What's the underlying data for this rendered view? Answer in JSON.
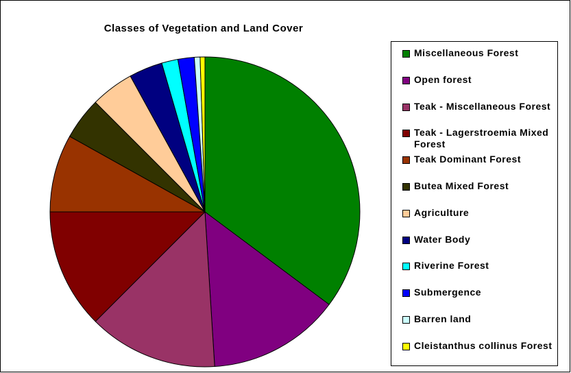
{
  "chart_data": {
    "type": "pie",
    "title": "Classes of Vegetation and Land Cover",
    "categories": [
      "Miscellaneous Forest",
      "Open forest",
      "Teak - Miscellaneous Forest",
      "Teak - Lagerstroemia Mixed Forest",
      "Teak Dominant Forest",
      "Butea Mixed Forest",
      "Agriculture",
      "Water Body",
      "Riverine Forest",
      "Submergence",
      "Barren land",
      "Cleistanthus collinus Forest"
    ],
    "values": [
      35.2,
      13.8,
      13.5,
      12.5,
      8.1,
      4.4,
      4.5,
      3.5,
      1.7,
      1.7,
      0.6,
      0.5
    ],
    "colors": [
      "#008000",
      "#800080",
      "#993366",
      "#800000",
      "#993300",
      "#333300",
      "#ffcc99",
      "#000080",
      "#00ffff",
      "#0000ff",
      "#ccffff",
      "#ffff00"
    ]
  }
}
